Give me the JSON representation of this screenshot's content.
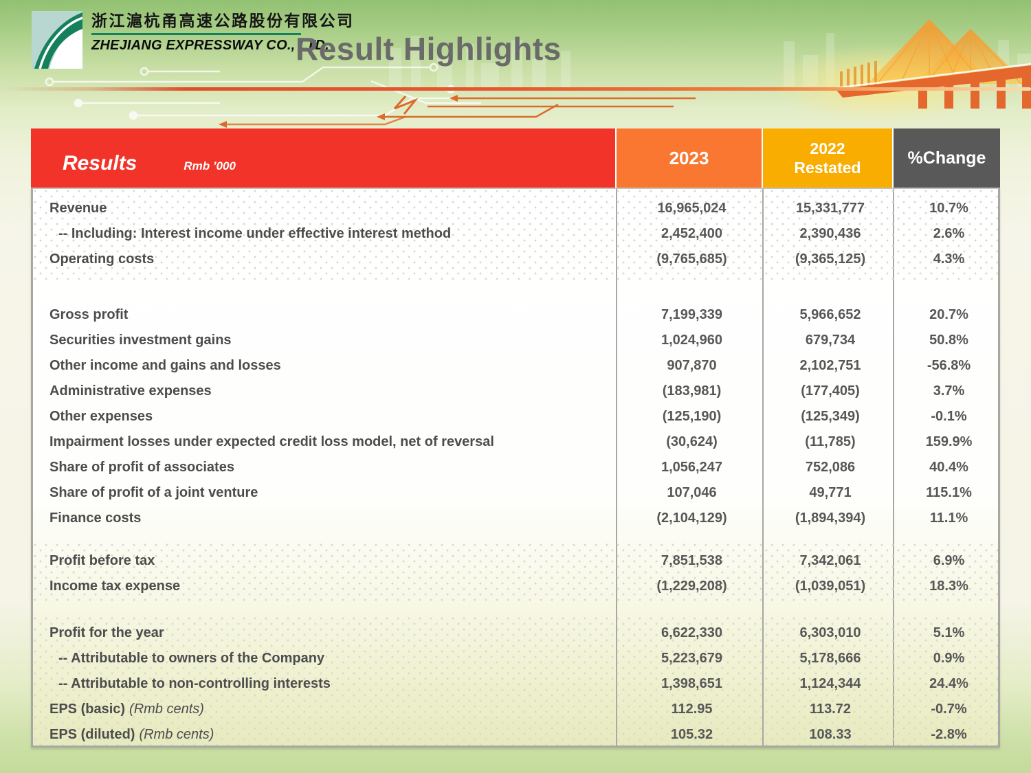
{
  "brand": {
    "company_cn": "浙江滬杭甬高速公路股份有限公司",
    "company_en": "ZHEJIANG EXPRESSWAY CO., LTD."
  },
  "page": {
    "title": "Result Highlights"
  },
  "colors": {
    "results_red": "#F23329",
    "col_2023_orange": "#F97730",
    "col_2022_gold": "#F9AD00",
    "col_change_gray": "#595959",
    "divider_orange": "#E6592E",
    "logo_green": "#15805C"
  },
  "table": {
    "header": {
      "label": "Results",
      "unit": "Rmb ’000",
      "col_2023": "2023",
      "col_2022_line1": "2022",
      "col_2022_line2": "Restated",
      "col_change": "%Change"
    },
    "sections": [
      {
        "style": "dotted",
        "rows": [
          {
            "label": "Revenue",
            "v2023": "16,965,024",
            "v2022": "15,331,777",
            "change": "10.7%"
          },
          {
            "label": "-- Including: Interest income under effective interest method",
            "indent": true,
            "v2023": "2,452,400",
            "v2022": "2,390,436",
            "change": "2.6%"
          },
          {
            "label": "Operating costs",
            "v2023": "(9,765,685)",
            "v2022": "(9,365,125)",
            "change": "4.3%"
          }
        ]
      },
      {
        "style": "plain",
        "rows": [
          {
            "label": "Gross profit",
            "v2023": "7,199,339",
            "v2022": "5,966,652",
            "change": "20.7%"
          },
          {
            "label": "Securities investment gains",
            "v2023": "1,024,960",
            "v2022": "679,734",
            "change": "50.8%"
          },
          {
            "label": "Other income and gains and losses",
            "v2023": "907,870",
            "v2022": "2,102,751",
            "change": "-56.8%"
          },
          {
            "label": "Administrative expenses",
            "v2023": "(183,981)",
            "v2022": "(177,405)",
            "change": "3.7%"
          },
          {
            "label": "Other expenses",
            "v2023": "(125,190)",
            "v2022": "(125,349)",
            "change": "-0.1%"
          },
          {
            "label": "Impairment losses under expected credit loss model, net of reversal",
            "v2023": "(30,624)",
            "v2022": "(11,785)",
            "change": "159.9%"
          },
          {
            "label": "Share of profit of associates",
            "v2023": "1,056,247",
            "v2022": "752,086",
            "change": "40.4%"
          },
          {
            "label": "Share of profit of a joint venture",
            "v2023": "107,046",
            "v2022": "49,771",
            "change": "115.1%"
          },
          {
            "label": "Finance costs",
            "v2023": "(2,104,129)",
            "v2022": "(1,894,394)",
            "change": "11.1%"
          }
        ]
      },
      {
        "style": "dotted",
        "rows": [
          {
            "label": "Profit before tax",
            "v2023": "7,851,538",
            "v2022": "7,342,061",
            "change": "6.9%"
          },
          {
            "label": "Income tax expense",
            "v2023": "(1,229,208)",
            "v2022": "(1,039,051)",
            "change": "18.3%"
          }
        ]
      },
      {
        "style": "dotted",
        "rows": [
          {
            "label": "Profit for the year",
            "v2023": "6,622,330",
            "v2022": "6,303,010",
            "change": "5.1%"
          },
          {
            "label": "-- Attributable to owners of the Company",
            "indent": true,
            "v2023": "5,223,679",
            "v2022": "5,178,666",
            "change": "0.9%"
          },
          {
            "label": "-- Attributable to non-controlling interests",
            "indent": true,
            "v2023": "1,398,651",
            "v2022": "1,124,344",
            "change": "24.4%"
          },
          {
            "label": "EPS (basic)",
            "label_note": "(Rmb cents)",
            "v2023": "112.95",
            "v2022": "113.72",
            "change": "-0.7%"
          },
          {
            "label": "EPS (diluted)",
            "label_note": "(Rmb cents)",
            "v2023": "105.32",
            "v2022": "108.33",
            "change": "-2.8%"
          }
        ]
      }
    ]
  }
}
